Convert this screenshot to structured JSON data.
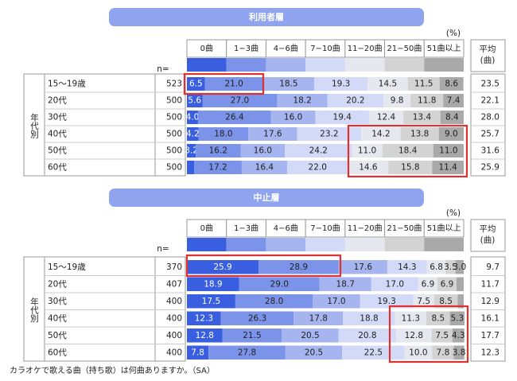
{
  "chart_data": [
    {
      "type": "bar",
      "orientation": "horizontal",
      "stacked": true,
      "title": "利用者層",
      "unit": "(%)",
      "n_label": "n=",
      "group_label": "年代別",
      "avg_header": [
        "平均",
        "(曲)"
      ],
      "xlim": [
        0,
        100
      ],
      "categories": [
        "15〜19歳",
        "20代",
        "30代",
        "40代",
        "50代",
        "60代"
      ],
      "n": [
        523,
        500,
        500,
        500,
        500,
        500
      ],
      "averages": [
        23.5,
        22.1,
        28.0,
        25.7,
        31.6,
        25.9
      ],
      "average_labels": [
        "23.5",
        "22.1",
        "28.0",
        "25.7",
        "31.6",
        "25.9"
      ],
      "series": [
        {
          "name": "0曲",
          "color": "#3a5ee0",
          "values": [
            6.5,
            5.6,
            4.0,
            4.2,
            3.2,
            2.6
          ],
          "value_labels": [
            "6.5",
            "5.6",
            "4.0",
            "4.2",
            "3.2",
            null
          ]
        },
        {
          "name": "1−3曲",
          "color": "#7b93e8",
          "values": [
            21.0,
            27.0,
            26.4,
            18.0,
            16.2,
            17.2
          ],
          "value_labels": [
            "21.0",
            "27.0",
            "26.4",
            "18.0",
            "16.2",
            "17.2"
          ]
        },
        {
          "name": "4−6曲",
          "color": "#a6b5f0",
          "values": [
            18.5,
            18.2,
            16.0,
            17.6,
            16.0,
            16.4
          ],
          "value_labels": [
            "18.5",
            "18.2",
            "16.0",
            "17.6",
            "16.0",
            "16.4"
          ]
        },
        {
          "name": "7−10曲",
          "color": "#d3daf8",
          "values": [
            19.3,
            20.2,
            19.4,
            23.2,
            24.2,
            22.0
          ],
          "value_labels": [
            "19.3",
            "20.2",
            "19.4",
            "23.2",
            "24.2",
            "22.0"
          ]
        },
        {
          "name": "11−20曲",
          "color": "#e6e8f0",
          "values": [
            14.5,
            9.8,
            12.4,
            14.2,
            11.0,
            14.6
          ],
          "value_labels": [
            "14.5",
            "9.8",
            "12.4",
            "14.2",
            "11.0",
            "14.6"
          ]
        },
        {
          "name": "21−50曲",
          "color": "#d3d3d3",
          "values": [
            11.5,
            11.8,
            13.4,
            13.8,
            18.4,
            15.8
          ],
          "value_labels": [
            "11.5",
            "11.8",
            "13.4",
            "13.8",
            "18.4",
            "15.8"
          ]
        },
        {
          "name": "51曲以上",
          "color": "#a9a9a9",
          "values": [
            8.6,
            7.4,
            8.4,
            9.0,
            11.0,
            11.4
          ],
          "value_labels": [
            "8.6",
            "7.4",
            "8.4",
            "9.0",
            "11.0",
            "11.4"
          ]
        }
      ]
    },
    {
      "type": "bar",
      "orientation": "horizontal",
      "stacked": true,
      "title": "中止層",
      "unit": "(%)",
      "n_label": "n=",
      "group_label": "年代別",
      "avg_header": [
        "平均",
        "(曲)"
      ],
      "xlim": [
        0,
        100
      ],
      "categories": [
        "15〜19歳",
        "20代",
        "30代",
        "40代",
        "50代",
        "60代"
      ],
      "n": [
        370,
        407,
        400,
        400,
        400,
        400
      ],
      "averages": [
        9.7,
        11.7,
        12.9,
        16.1,
        17.7,
        12.3
      ],
      "average_labels": [
        "9.7",
        "11.7",
        "12.9",
        "16.1",
        "17.7",
        "12.3"
      ],
      "series": [
        {
          "name": "0曲",
          "color": "#3a5ee0",
          "values": [
            25.9,
            18.9,
            17.5,
            12.3,
            12.8,
            7.8
          ],
          "value_labels": [
            "25.9",
            "18.9",
            "17.5",
            "12.3",
            "12.8",
            "7.8"
          ]
        },
        {
          "name": "1−3曲",
          "color": "#7b93e8",
          "values": [
            28.9,
            29.0,
            28.0,
            26.3,
            21.5,
            27.8
          ],
          "value_labels": [
            "28.9",
            "29.0",
            "28.0",
            "26.3",
            "21.5",
            "27.8"
          ]
        },
        {
          "name": "4−6曲",
          "color": "#a6b5f0",
          "values": [
            17.6,
            18.7,
            17.0,
            17.8,
            20.5,
            20.5
          ],
          "value_labels": [
            "17.6",
            "18.7",
            "17.0",
            "17.8",
            "20.5",
            "20.5"
          ]
        },
        {
          "name": "7−10曲",
          "color": "#d3daf8",
          "values": [
            14.3,
            17.0,
            19.3,
            18.8,
            20.8,
            22.5
          ],
          "value_labels": [
            "14.3",
            "17.0",
            "19.3",
            "18.8",
            "20.8",
            "22.5"
          ]
        },
        {
          "name": "11−20曲",
          "color": "#e6e8f0",
          "values": [
            6.8,
            6.9,
            7.5,
            11.3,
            12.8,
            10.0
          ],
          "value_labels": [
            "6.8",
            "6.9",
            "7.5",
            "11.3",
            "12.8",
            "10.0"
          ]
        },
        {
          "name": "21−50曲",
          "color": "#d3d3d3",
          "values": [
            3.5,
            6.9,
            8.5,
            8.5,
            7.5,
            7.8
          ],
          "value_labels": [
            "3.5",
            "6.9",
            "8.5",
            "8.5",
            "7.5",
            "7.8"
          ]
        },
        {
          "name": "51曲以上",
          "color": "#a9a9a9",
          "values": [
            3.0,
            2.6,
            2.2,
            5.3,
            4.3,
            3.8
          ],
          "value_labels": [
            "3.0",
            null,
            null,
            "5.3",
            "4.3",
            "3.8"
          ]
        }
      ]
    }
  ],
  "note": "カラオケで歌える曲（持ち歌）は何曲ありますか。（SA）"
}
